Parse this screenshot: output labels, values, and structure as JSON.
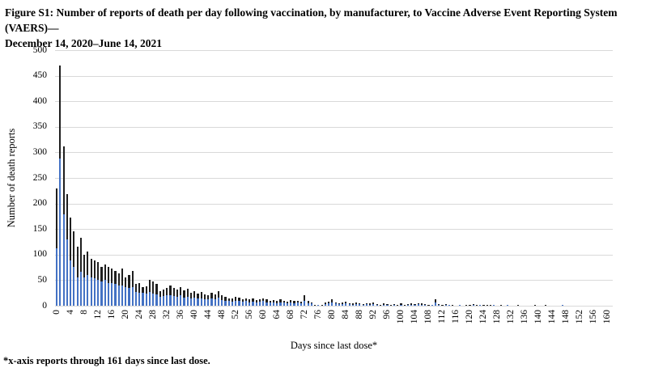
{
  "figure": {
    "title_line1": "Figure S1: Number of reports of death per day following vaccination, by manufacturer, to Vaccine Adverse Event Reporting System (VAERS)—",
    "title_line2": "December 14, 2020–June 14, 2021",
    "footnote": "*x-axis reports through 161 days since last dose."
  },
  "chart_data": {
    "type": "bar",
    "stacked": true,
    "title": "",
    "xlabel": "Days since last dose*",
    "ylabel": "Number of death reports",
    "ylim": [
      0,
      500
    ],
    "ytick_step": 50,
    "x": {
      "start": 0,
      "end": 161,
      "tick_step": 4
    },
    "grid": "horizontal",
    "legend": "none",
    "colors": {
      "series_blue": "#4472c4",
      "series_black": "#1f1f1f",
      "gridline": "#d9d9d9"
    },
    "series": [
      {
        "name": "blue (bottom segment)",
        "color": "#4472c4",
        "values": [
          113,
          288,
          179,
          130,
          88,
          76,
          55,
          66,
          55,
          60,
          56,
          54,
          50,
          48,
          50,
          45,
          44,
          42,
          40,
          40,
          36,
          35,
          37,
          27,
          26,
          25,
          23,
          27,
          23,
          22,
          18,
          19,
          20,
          21,
          19,
          18,
          20,
          16,
          18,
          15,
          16,
          14,
          15,
          13,
          12,
          14,
          12,
          16,
          11,
          10,
          9,
          8,
          10,
          9,
          8,
          9,
          7,
          8,
          6,
          8,
          9,
          7,
          6,
          6,
          5,
          7,
          6,
          5,
          6,
          5,
          6,
          4,
          10,
          5,
          4,
          1,
          1,
          1,
          3,
          4,
          6,
          4,
          3,
          3,
          4,
          3,
          2,
          3,
          3,
          2,
          3,
          2,
          3,
          2,
          1,
          2,
          2,
          1,
          2,
          1,
          2,
          1,
          2,
          2,
          2,
          3,
          2,
          2,
          1,
          1,
          6,
          2,
          1,
          2,
          1,
          1,
          0,
          1,
          0,
          0,
          1,
          1,
          1,
          1,
          1,
          0,
          1,
          1,
          0,
          0,
          0,
          1,
          0,
          0,
          1,
          0,
          0,
          0,
          0,
          1,
          0,
          0,
          1,
          0,
          0,
          0,
          0,
          1,
          0,
          0,
          0,
          0,
          0,
          0,
          0,
          0,
          0,
          0,
          0,
          0,
          0,
          0
        ]
      },
      {
        "name": "black (top segment)",
        "color": "#1f1f1f",
        "values": [
          117,
          182,
          133,
          88,
          84,
          70,
          60,
          67,
          45,
          46,
          36,
          35,
          36,
          28,
          31,
          31,
          29,
          26,
          23,
          32,
          19,
          25,
          31,
          15,
          18,
          11,
          15,
          23,
          24,
          21,
          10,
          13,
          15,
          18,
          16,
          14,
          16,
          14,
          16,
          11,
          12,
          9,
          12,
          9,
          8,
          11,
          10,
          12,
          9,
          8,
          6,
          6,
          8,
          7,
          5,
          6,
          5,
          6,
          5,
          5,
          6,
          5,
          4,
          5,
          4,
          5,
          4,
          3,
          5,
          4,
          4,
          4,
          10,
          4,
          3,
          1,
          0,
          1,
          3,
          4,
          6,
          3,
          2,
          3,
          4,
          2,
          2,
          3,
          2,
          1,
          2,
          2,
          3,
          1,
          1,
          2,
          1,
          1,
          1,
          1,
          2,
          1,
          1,
          2,
          1,
          2,
          2,
          1,
          1,
          0,
          7,
          1,
          1,
          1,
          0,
          1,
          0,
          0,
          0,
          1,
          1,
          2,
          1,
          0,
          1,
          1,
          1,
          0,
          0,
          1,
          0,
          0,
          0,
          0,
          1,
          0,
          0,
          0,
          0,
          1,
          0,
          0,
          1,
          0,
          0,
          0,
          0,
          0,
          0,
          0,
          0,
          0,
          0,
          0,
          0,
          0,
          0,
          0,
          0,
          0,
          0,
          0
        ]
      }
    ]
  }
}
